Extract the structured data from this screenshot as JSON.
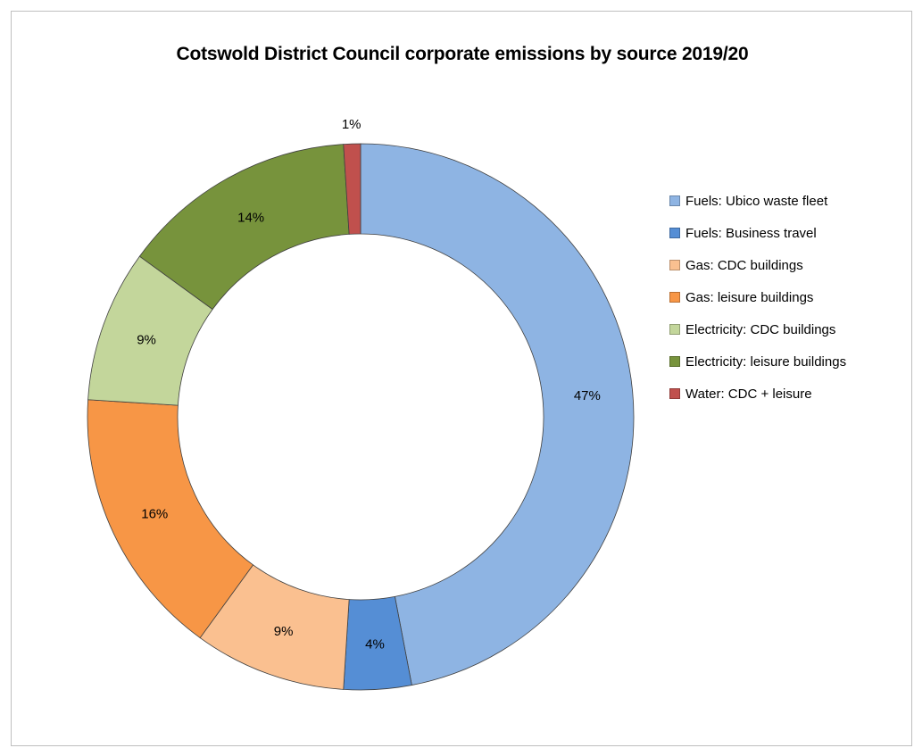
{
  "chart_data": {
    "type": "pie",
    "subtype": "doughnut",
    "title": "Cotswold District Council corporate emissions by source 2019/20",
    "legend_position": "right",
    "slices": [
      {
        "label": "Fuels: Ubico waste fleet",
        "value": 47,
        "display": "47%",
        "color": "#8eb4e3"
      },
      {
        "label": "Fuels: Business travel",
        "value": 4,
        "display": "4%",
        "color": "#558ed5"
      },
      {
        "label": "Gas: CDC buildings",
        "value": 9,
        "display": "9%",
        "color": "#fac090"
      },
      {
        "label": "Gas: leisure buildings",
        "value": 16,
        "display": "16%",
        "color": "#f79646"
      },
      {
        "label": "Electricity: CDC buildings",
        "value": 9,
        "display": "9%",
        "color": "#c3d69b"
      },
      {
        "label": "Electricity: leisure buildings",
        "value": 14,
        "display": "14%",
        "color": "#77933c"
      },
      {
        "label": "Water: CDC + leisure",
        "value": 1,
        "display": "1%",
        "color": "#c0504d"
      }
    ]
  }
}
